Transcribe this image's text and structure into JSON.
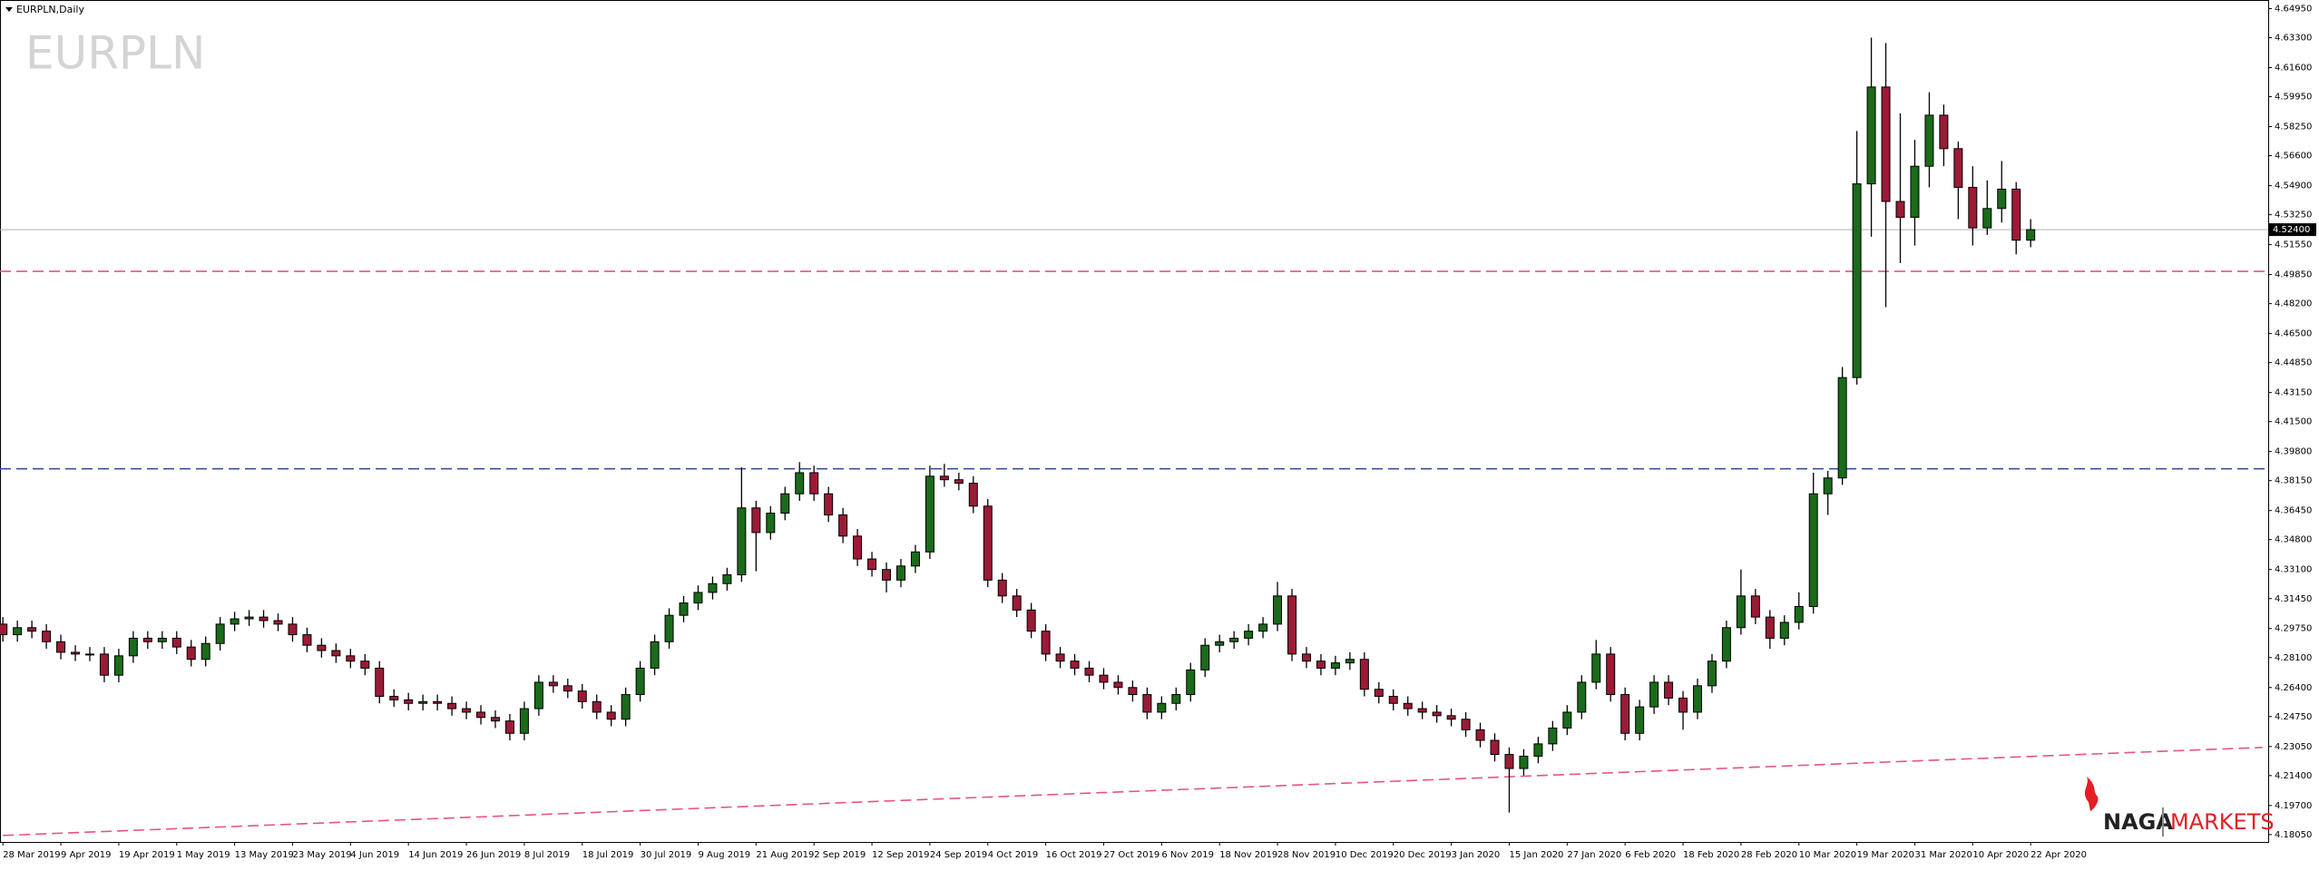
{
  "chart_data": {
    "type": "candlestick",
    "title": "EURPLN,Daily",
    "watermark": "EURPLN",
    "logo": {
      "left": "NAGA",
      "right": "MARKETS"
    },
    "bull_color": "#1a6b1a",
    "bear_color": "#9b1b36",
    "open": [
      4.3,
      4.294,
      4.298,
      4.296,
      4.29,
      4.284,
      4.283,
      4.283,
      4.271,
      4.282,
      4.292,
      4.29,
      4.292,
      4.287,
      4.28,
      4.289,
      4.3,
      4.303,
      4.304,
      4.302,
      4.3,
      4.294,
      4.288,
      4.285,
      4.282,
      4.279,
      4.275,
      4.259,
      4.257,
      4.255,
      4.256,
      4.255,
      4.252,
      4.25,
      4.247,
      4.245,
      4.238,
      4.252,
      4.267,
      4.265,
      4.262,
      4.256,
      4.25,
      4.246,
      4.26,
      4.275,
      4.29,
      4.305,
      4.312,
      4.318,
      4.323,
      4.328,
      4.366,
      4.352,
      4.363,
      4.374,
      4.386,
      4.374,
      4.362,
      4.35,
      4.337,
      4.331,
      4.325,
      4.333,
      4.341,
      4.384,
      4.382,
      4.38,
      4.367,
      4.325,
      4.316,
      4.308,
      4.296,
      4.283,
      4.279,
      4.275,
      4.271,
      4.267,
      4.264,
      4.26,
      4.25,
      4.255,
      4.26,
      4.274,
      4.288,
      4.29,
      4.292,
      4.296,
      4.3,
      4.316,
      4.283,
      4.279,
      4.275,
      4.278,
      4.28,
      4.263,
      4.259,
      4.255,
      4.252,
      4.25,
      4.248,
      4.246,
      4.24,
      4.234,
      4.226,
      4.218,
      4.225,
      4.232,
      4.241,
      4.25,
      4.267,
      4.283,
      4.26,
      4.238,
      4.253,
      4.267,
      4.258,
      4.25,
      4.265,
      4.279,
      4.298,
      4.316,
      4.304,
      4.292,
      4.301,
      4.31,
      4.374,
      4.383,
      4.44,
      4.55,
      4.605,
      4.54,
      4.531,
      4.56,
      4.589,
      4.57,
      4.548,
      4.525,
      4.536,
      4.547,
      4.518
    ],
    "high": [
      4.304,
      4.302,
      4.302,
      4.3,
      4.294,
      4.288,
      4.287,
      4.287,
      4.286,
      4.296,
      4.296,
      4.296,
      4.296,
      4.291,
      4.293,
      4.304,
      4.307,
      4.308,
      4.308,
      4.306,
      4.304,
      4.298,
      4.292,
      4.289,
      4.286,
      4.283,
      4.279,
      4.263,
      4.261,
      4.26,
      4.26,
      4.259,
      4.256,
      4.254,
      4.251,
      4.249,
      4.256,
      4.271,
      4.271,
      4.269,
      4.266,
      4.26,
      4.254,
      4.264,
      4.279,
      4.294,
      4.309,
      4.316,
      4.322,
      4.327,
      4.332,
      4.389,
      4.37,
      4.367,
      4.378,
      4.392,
      4.39,
      4.378,
      4.366,
      4.354,
      4.341,
      4.335,
      4.337,
      4.345,
      4.39,
      4.391,
      4.386,
      4.384,
      4.371,
      4.329,
      4.32,
      4.312,
      4.3,
      4.287,
      4.283,
      4.279,
      4.275,
      4.271,
      4.268,
      4.264,
      4.259,
      4.264,
      4.278,
      4.292,
      4.294,
      4.296,
      4.3,
      4.304,
      4.324,
      4.32,
      4.287,
      4.283,
      4.282,
      4.284,
      4.284,
      4.267,
      4.263,
      4.259,
      4.256,
      4.254,
      4.252,
      4.25,
      4.244,
      4.238,
      4.23,
      4.229,
      4.236,
      4.245,
      4.254,
      4.271,
      4.291,
      4.287,
      4.264,
      4.257,
      4.271,
      4.271,
      4.262,
      4.269,
      4.283,
      4.302,
      4.331,
      4.32,
      4.308,
      4.305,
      4.318,
      4.386,
      4.387,
      4.446,
      4.58,
      4.633,
      4.63,
      4.59,
      4.575,
      4.602,
      4.595,
      4.574,
      4.56,
      4.552,
      4.563,
      4.551,
      4.53
    ],
    "low": [
      4.29,
      4.29,
      4.292,
      4.286,
      4.28,
      4.279,
      4.279,
      4.267,
      4.267,
      4.278,
      4.286,
      4.286,
      4.283,
      4.276,
      4.276,
      4.285,
      4.296,
      4.299,
      4.298,
      4.296,
      4.29,
      4.284,
      4.281,
      4.278,
      4.275,
      4.271,
      4.255,
      4.253,
      4.251,
      4.251,
      4.251,
      4.248,
      4.246,
      4.243,
      4.241,
      4.234,
      4.234,
      4.248,
      4.261,
      4.258,
      4.252,
      4.246,
      4.242,
      4.242,
      4.256,
      4.271,
      4.286,
      4.301,
      4.308,
      4.314,
      4.319,
      4.324,
      4.33,
      4.348,
      4.359,
      4.37,
      4.37,
      4.358,
      4.346,
      4.333,
      4.327,
      4.318,
      4.321,
      4.329,
      4.337,
      4.378,
      4.376,
      4.363,
      4.321,
      4.312,
      4.304,
      4.292,
      4.279,
      4.275,
      4.271,
      4.267,
      4.263,
      4.26,
      4.256,
      4.246,
      4.246,
      4.251,
      4.256,
      4.27,
      4.284,
      4.286,
      4.288,
      4.292,
      4.296,
      4.279,
      4.275,
      4.271,
      4.271,
      4.274,
      4.259,
      4.255,
      4.251,
      4.248,
      4.246,
      4.244,
      4.242,
      4.236,
      4.23,
      4.222,
      4.193,
      4.214,
      4.221,
      4.228,
      4.237,
      4.246,
      4.263,
      4.256,
      4.234,
      4.234,
      4.249,
      4.254,
      4.24,
      4.246,
      4.261,
      4.275,
      4.294,
      4.3,
      4.286,
      4.288,
      4.297,
      4.306,
      4.362,
      4.379,
      4.436,
      4.52,
      4.48,
      4.505,
      4.515,
      4.548,
      4.56,
      4.53,
      4.515,
      4.521,
      4.528,
      4.51,
      4.514
    ],
    "close": [
      4.294,
      4.298,
      4.296,
      4.29,
      4.284,
      4.283,
      4.283,
      4.271,
      4.282,
      4.292,
      4.29,
      4.292,
      4.287,
      4.28,
      4.289,
      4.3,
      4.303,
      4.304,
      4.302,
      4.3,
      4.294,
      4.288,
      4.285,
      4.282,
      4.279,
      4.275,
      4.259,
      4.257,
      4.255,
      4.256,
      4.255,
      4.252,
      4.25,
      4.247,
      4.245,
      4.238,
      4.252,
      4.267,
      4.265,
      4.262,
      4.256,
      4.25,
      4.246,
      4.26,
      4.275,
      4.29,
      4.305,
      4.312,
      4.318,
      4.323,
      4.328,
      4.366,
      4.352,
      4.363,
      4.374,
      4.386,
      4.374,
      4.362,
      4.35,
      4.337,
      4.331,
      4.325,
      4.333,
      4.341,
      4.384,
      4.382,
      4.38,
      4.367,
      4.325,
      4.316,
      4.308,
      4.296,
      4.283,
      4.279,
      4.275,
      4.271,
      4.267,
      4.264,
      4.26,
      4.25,
      4.255,
      4.26,
      4.274,
      4.288,
      4.29,
      4.292,
      4.296,
      4.3,
      4.316,
      4.283,
      4.279,
      4.275,
      4.278,
      4.28,
      4.263,
      4.259,
      4.255,
      4.252,
      4.25,
      4.248,
      4.246,
      4.24,
      4.234,
      4.226,
      4.218,
      4.225,
      4.232,
      4.241,
      4.25,
      4.267,
      4.283,
      4.26,
      4.238,
      4.253,
      4.267,
      4.258,
      4.25,
      4.265,
      4.279,
      4.298,
      4.316,
      4.304,
      4.292,
      4.301,
      4.31,
      4.374,
      4.383,
      4.44,
      4.55,
      4.605,
      4.54,
      4.531,
      4.56,
      4.589,
      4.57,
      4.548,
      4.525,
      4.536,
      4.547,
      4.518,
      4.524
    ],
    "xlim": [
      -0.2,
      156.4
    ],
    "ylim": [
      4.1763,
      4.6544
    ],
    "xticks": [
      {
        "value": 0,
        "label": "28 Mar 2019"
      },
      {
        "value": 4,
        "label": "9 Apr 2019"
      },
      {
        "value": 8,
        "label": "19 Apr 2019"
      },
      {
        "value": 12,
        "label": "1 May 2019"
      },
      {
        "value": 16,
        "label": "13 May 2019"
      },
      {
        "value": 20,
        "label": "23 May 2019"
      },
      {
        "value": 24,
        "label": "4 Jun 2019"
      },
      {
        "value": 28,
        "label": "14 Jun 2019"
      },
      {
        "value": 32,
        "label": "26 Jun 2019"
      },
      {
        "value": 36,
        "label": "8 Jul 2019"
      },
      {
        "value": 40,
        "label": "18 Jul 2019"
      },
      {
        "value": 44,
        "label": "30 Jul 2019"
      },
      {
        "value": 48,
        "label": "9 Aug 2019"
      },
      {
        "value": 52,
        "label": "21 Aug 2019"
      },
      {
        "value": 56,
        "label": "2 Sep 2019"
      },
      {
        "value": 60,
        "label": "12 Sep 2019"
      },
      {
        "value": 64,
        "label": "24 Sep 2019"
      },
      {
        "value": 68,
        "label": "4 Oct 2019"
      },
      {
        "value": 72,
        "label": "16 Oct 2019"
      },
      {
        "value": 76,
        "label": "27 Oct 2019"
      },
      {
        "value": 80,
        "label": "6 Nov 2019"
      },
      {
        "value": 84,
        "label": "18 Nov 2019"
      },
      {
        "value": 88,
        "label": "28 Nov 2019"
      },
      {
        "value": 92,
        "label": "10 Dec 2019"
      },
      {
        "value": 96,
        "label": "20 Dec 2019"
      },
      {
        "value": 100,
        "label": "3 Jan 2020"
      },
      {
        "value": 104,
        "label": "15 Jan 2020"
      },
      {
        "value": 108,
        "label": "27 Jan 2020"
      },
      {
        "value": 112,
        "label": "6 Feb 2020"
      },
      {
        "value": 116,
        "label": "18 Feb 2020"
      },
      {
        "value": 120,
        "label": "28 Feb 2020"
      },
      {
        "value": 124,
        "label": "10 Mar 2020"
      },
      {
        "value": 128,
        "label": "19 Mar 2020"
      },
      {
        "value": 132,
        "label": "31 Mar 2020"
      },
      {
        "value": 136,
        "label": "10 Apr 2020"
      },
      {
        "value": 140,
        "label": "22 Apr 2020"
      }
    ],
    "yticks": [
      {
        "value": 4.6495,
        "label": "4.64950"
      },
      {
        "value": 4.633,
        "label": "4.63300"
      },
      {
        "value": 4.616,
        "label": "4.61600"
      },
      {
        "value": 4.5995,
        "label": "4.59950"
      },
      {
        "value": 4.5825,
        "label": "4.58250"
      },
      {
        "value": 4.566,
        "label": "4.56600"
      },
      {
        "value": 4.549,
        "label": "4.54900"
      },
      {
        "value": 4.5325,
        "label": "4.53250"
      },
      {
        "value": 4.5155,
        "label": "4.51550"
      },
      {
        "value": 4.4985,
        "label": "4.49850"
      },
      {
        "value": 4.482,
        "label": "4.48200"
      },
      {
        "value": 4.465,
        "label": "4.46500"
      },
      {
        "value": 4.4485,
        "label": "4.44850"
      },
      {
        "value": 4.4315,
        "label": "4.43150"
      },
      {
        "value": 4.415,
        "label": "4.41500"
      },
      {
        "value": 4.398,
        "label": "4.39800"
      },
      {
        "value": 4.3815,
        "label": "4.38150"
      },
      {
        "value": 4.3645,
        "label": "4.36450"
      },
      {
        "value": 4.348,
        "label": "4.34800"
      },
      {
        "value": 4.331,
        "label": "4.33100"
      },
      {
        "value": 4.3145,
        "label": "4.31450"
      },
      {
        "value": 4.2975,
        "label": "4.29750"
      },
      {
        "value": 4.281,
        "label": "4.28100"
      },
      {
        "value": 4.264,
        "label": "4.26400"
      },
      {
        "value": 4.2475,
        "label": "4.24750"
      },
      {
        "value": 4.2305,
        "label": "4.23050"
      },
      {
        "value": 4.214,
        "label": "4.21400"
      },
      {
        "value": 4.197,
        "label": "4.19700"
      },
      {
        "value": 4.1805,
        "label": "4.18050"
      }
    ],
    "last_price": {
      "value": 4.524,
      "label": "4.52400"
    },
    "hlines": [
      {
        "value": 4.5003,
        "color": "#e75480"
      },
      {
        "value": 4.3882,
        "color": "#3b4fa0"
      }
    ],
    "trendline": {
      "x": [
        0,
        156
      ],
      "y": [
        4.18,
        4.23
      ],
      "color": "#e75480"
    }
  }
}
